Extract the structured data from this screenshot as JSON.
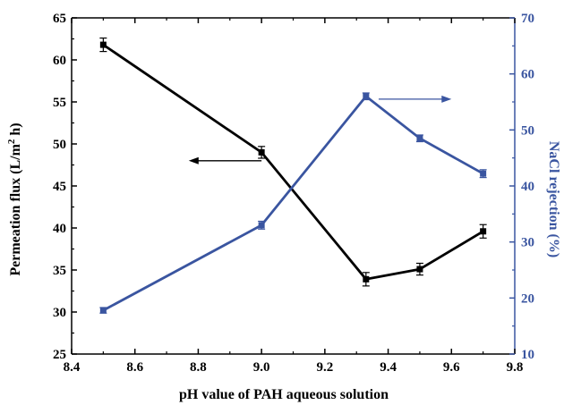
{
  "chart_data": {
    "type": "line",
    "xlabel": "pH value of PAH aqueous solution",
    "x_ticks": [
      "8.4",
      "8.6",
      "8.8",
      "9.0",
      "9.2",
      "9.4",
      "9.6",
      "9.8"
    ],
    "xlim": [
      8.4,
      9.8
    ],
    "y_left": {
      "label_main": "Permeation flux (L/m",
      "label_sup": "2",
      "label_end": " h)",
      "ylim": [
        25,
        65
      ],
      "ticks": [
        "25",
        "30",
        "35",
        "40",
        "45",
        "50",
        "55",
        "60",
        "65"
      ],
      "color": "#000000"
    },
    "y_right": {
      "label": "NaCl rejection (%)",
      "ylim": [
        10,
        70
      ],
      "ticks": [
        "10",
        "20",
        "30",
        "40",
        "50",
        "60",
        "70"
      ],
      "color": "#3a55a0"
    },
    "series": [
      {
        "axis": "left",
        "color": "#000000",
        "x": [
          8.5,
          9.0,
          9.33,
          9.5,
          9.7
        ],
        "y": [
          61.8,
          49.0,
          33.9,
          35.1,
          39.6
        ],
        "err": [
          0.8,
          0.7,
          0.8,
          0.7,
          0.8
        ]
      },
      {
        "axis": "right",
        "color": "#3a55a0",
        "x": [
          8.5,
          9.0,
          9.33,
          9.5,
          9.7
        ],
        "y": [
          17.8,
          33.0,
          56.0,
          48.5,
          42.2
        ],
        "err": [
          0.5,
          0.7,
          0.6,
          0.6,
          0.7
        ]
      }
    ],
    "annotations": [
      {
        "type": "arrow",
        "direction": "left",
        "points_to_axis": "left",
        "color": "#000000",
        "x_from": 9.0,
        "x_to": 8.77,
        "y": 48.0
      },
      {
        "type": "arrow",
        "direction": "right",
        "points_to_axis": "right",
        "color": "#3a55a0",
        "x_from": 9.37,
        "x_to": 9.6,
        "y": 55.5
      }
    ]
  }
}
